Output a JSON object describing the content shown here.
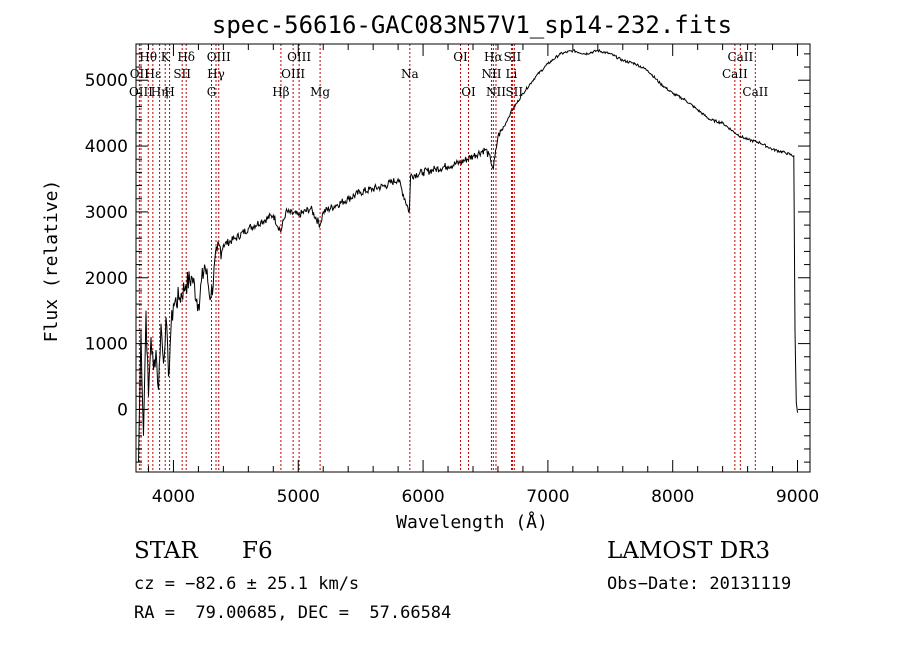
{
  "chart_data": {
    "type": "line",
    "title": "spec-56616-GAC083N57V1_sp14-232.fits",
    "xlabel": "Wavelength (Å)",
    "ylabel": "Flux (relative)",
    "xlim": [
      3700,
      9100
    ],
    "ylim": [
      -950,
      5550
    ],
    "x_ticks": [
      4000,
      5000,
      6000,
      7000,
      8000,
      9000
    ],
    "y_ticks": [
      0,
      1000,
      2000,
      3000,
      4000,
      5000
    ],
    "x_tick_labels": [
      "4000",
      "5000",
      "6000",
      "7000",
      "8000",
      "9000"
    ],
    "y_tick_labels": [
      "0",
      "1000",
      "2000",
      "3000",
      "4000",
      "5000"
    ],
    "line_color": "#000000",
    "marker_color": "#c00000",
    "series": [
      {
        "name": "spectrum",
        "x": [
          3720,
          3740,
          3760,
          3780,
          3800,
          3820,
          3840,
          3860,
          3880,
          3900,
          3920,
          3940,
          3960,
          3980,
          4000,
          4050,
          4100,
          4150,
          4200,
          4250,
          4300,
          4350,
          4400,
          4500,
          4600,
          4700,
          4800,
          4860,
          4900,
          5000,
          5100,
          5175,
          5200,
          5300,
          5400,
          5500,
          5600,
          5700,
          5800,
          5890,
          5900,
          6000,
          6100,
          6200,
          6300,
          6400,
          6500,
          6540,
          6563,
          6600,
          6650,
          6700,
          6800,
          6900,
          7000,
          7100,
          7200,
          7300,
          7400,
          7500,
          7600,
          7700,
          7800,
          7900,
          8000,
          8100,
          8200,
          8300,
          8400,
          8500,
          8542,
          8600,
          8700,
          8800,
          8900,
          8970,
          8980,
          8990,
          9000
        ],
        "y": [
          -800,
          1200,
          -400,
          1500,
          200,
          1100,
          600,
          900,
          300,
          1300,
          700,
          1400,
          500,
          1200,
          1600,
          1700,
          1900,
          2000,
          1600,
          2200,
          1700,
          2400,
          2500,
          2600,
          2750,
          2850,
          2950,
          2700,
          3000,
          2950,
          3050,
          2800,
          3000,
          3100,
          3200,
          3300,
          3350,
          3400,
          3500,
          3000,
          3550,
          3600,
          3650,
          3700,
          3750,
          3850,
          3950,
          3800,
          3650,
          4150,
          4300,
          4500,
          4800,
          5050,
          5250,
          5400,
          5450,
          5400,
          5450,
          5400,
          5300,
          5250,
          5150,
          4950,
          4800,
          4700,
          4550,
          4400,
          4350,
          4200,
          4150,
          4100,
          4050,
          3950,
          3900,
          3850,
          1200,
          100,
          -50
        ]
      }
    ],
    "lines": [
      {
        "label": "Hθ",
        "wl": 3798,
        "row": 1
      },
      {
        "label": "OII",
        "wl": 3727,
        "row": 2
      },
      {
        "label": "OIII",
        "wl": 3740,
        "row": 3
      },
      {
        "label": "K",
        "wl": 3934,
        "row": 1
      },
      {
        "label": "Hε",
        "wl": 3835,
        "row": 2
      },
      {
        "label": "Hη",
        "wl": 3889,
        "row": 3
      },
      {
        "label": "Hδ",
        "wl": 4102,
        "row": 1
      },
      {
        "label": "SII",
        "wl": 4070,
        "row": 2
      },
      {
        "label": "H",
        "wl": 3969,
        "row": 3
      },
      {
        "label": "OIII",
        "wl": 4363,
        "row": 1
      },
      {
        "label": "Hγ",
        "wl": 4341,
        "row": 2
      },
      {
        "label": "G",
        "wl": 4305,
        "row": 3
      },
      {
        "label": "OIII",
        "wl": 5007,
        "row": 1
      },
      {
        "label": "OIII",
        "wl": 4959,
        "row": 2
      },
      {
        "label": "Hβ",
        "wl": 4861,
        "row": 3
      },
      {
        "label": "Mg",
        "wl": 5175,
        "row": 3
      },
      {
        "label": "Na",
        "wl": 5894,
        "row": 2
      },
      {
        "label": "OI",
        "wl": 6300,
        "row": 1
      },
      {
        "label": "OI",
        "wl": 6364,
        "row": 3
      },
      {
        "label": "Hα",
        "wl": 6563,
        "row": 1
      },
      {
        "label": "SII",
        "wl": 6716,
        "row": 1
      },
      {
        "label": "NII",
        "wl": 6548,
        "row": 2
      },
      {
        "label": "Li",
        "wl": 6708,
        "row": 2
      },
      {
        "label": "NII",
        "wl": 6584,
        "row": 3
      },
      {
        "label": "SII",
        "wl": 6731,
        "row": 3
      },
      {
        "label": "CaII",
        "wl": 8542,
        "row": 1
      },
      {
        "label": "CaII",
        "wl": 8498,
        "row": 2
      },
      {
        "label": "CaII",
        "wl": 8662,
        "row": 3
      }
    ]
  },
  "info": {
    "object_class": "STAR",
    "subclass": "F6",
    "survey": "LAMOST DR3",
    "cz": "cz = −82.6 ± 25.1 km/s",
    "obs_date": "Obs−Date: 20131119",
    "coords": "RA =  79.00685, DEC =  57.66584"
  }
}
